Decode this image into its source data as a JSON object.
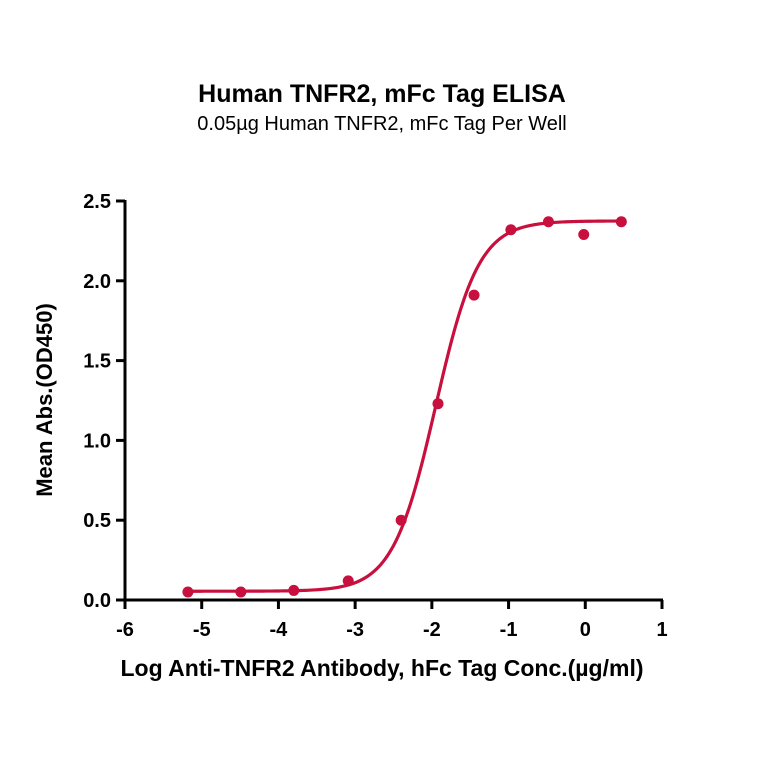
{
  "chart_data": {
    "type": "scatter",
    "title": "Human TNFR2, mFc Tag ELISA",
    "subtitle": "0.05µg Human TNFR2, mFc Tag Per Well",
    "xlabel": "Log Anti-TNFR2 Antibody, hFc Tag Conc.(µg/ml)",
    "ylabel": "Mean Abs.(OD450)",
    "xlim": [
      -6,
      1
    ],
    "ylim": [
      0,
      2.5
    ],
    "xticks": [
      -6,
      -5,
      -4,
      -3,
      -2,
      -1,
      0,
      1
    ],
    "yticks": [
      "0.0",
      "0.5",
      "1.0",
      "1.5",
      "2.0",
      "2.5"
    ],
    "grid": false,
    "legend": null,
    "series": [
      {
        "name": "Mean Abs.",
        "color": "#C8103E",
        "x": [
          -5.18,
          -4.49,
          -3.8,
          -3.09,
          -2.4,
          -1.92,
          -1.45,
          -0.97,
          -0.48,
          -0.02,
          0.47
        ],
        "y": [
          0.05,
          0.05,
          0.06,
          0.12,
          0.5,
          1.23,
          1.91,
          2.32,
          2.37,
          2.29,
          2.37
        ]
      }
    ],
    "fit": {
      "type": "4PL sigmoid",
      "bottom": 0.055,
      "top": 2.375,
      "logEC50": -1.95,
      "hill": 1.55,
      "color": "#C8103E"
    }
  }
}
